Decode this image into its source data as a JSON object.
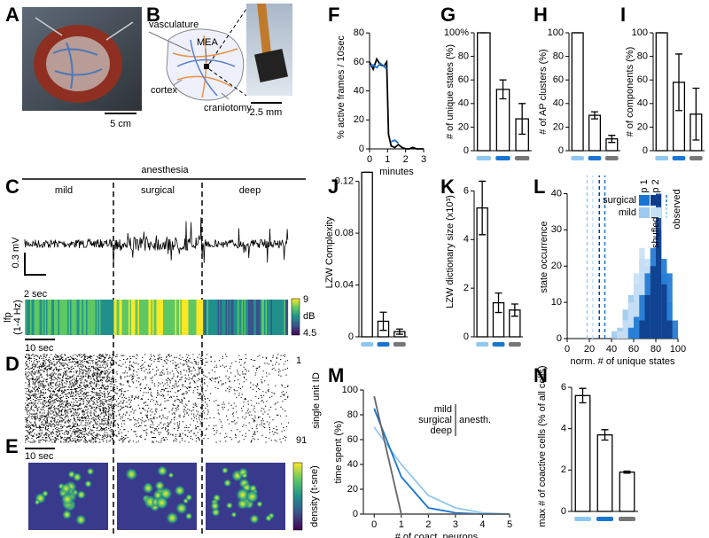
{
  "panel_letters": [
    "A",
    "B",
    "C",
    "D",
    "E",
    "F",
    "G",
    "H",
    "I",
    "J",
    "K",
    "L",
    "M",
    "N"
  ],
  "panel_a": {
    "scale_bar": "5 cm"
  },
  "panel_b": {
    "labels": [
      "vasculature",
      "MEA",
      "cortex",
      "craniotomy"
    ],
    "scale_bar": "2.5 mm"
  },
  "panel_c": {
    "title": "anesthesia",
    "conditions": [
      "mild",
      "surgical",
      "deep"
    ],
    "condition_colors": [
      "#8ec8f0",
      "#1a75d2",
      "#777777"
    ],
    "voltage_scale": "0.3 mV",
    "time_scale": "2 sec",
    "lfp_label": "lfp",
    "lfp_band": "(1-4 Hz)",
    "colorbar_max": 9,
    "colorbar_unit": "dB",
    "colorbar_min": 4.5,
    "lfp_time_scale": "10 sec"
  },
  "panel_d": {
    "first_unit": 1,
    "last_unit": 91,
    "axis_label": "single unit ID",
    "time_scale": "10 sec"
  },
  "panel_e": {
    "colorbar_label": "density (t-sne)"
  },
  "chart_data": [
    {
      "type": "line",
      "ylabel": "% active frames / 10sec",
      "xlabel": "minutes",
      "x": [
        0,
        0.2,
        0.4,
        0.6,
        0.8,
        0.95,
        1.05,
        1.2,
        1.4,
        1.6,
        1.8,
        2.0,
        2.2,
        2.4,
        2.6,
        2.8,
        3.0
      ],
      "series": [
        {
          "color": "#000000",
          "values": [
            60,
            55,
            62,
            58,
            57,
            60,
            10,
            2,
            1,
            3,
            1,
            0,
            0,
            1,
            0,
            0,
            0
          ]
        },
        {
          "color": "#1a75d2",
          "values": [
            57,
            58,
            56,
            59,
            57,
            55,
            null,
            5,
            6,
            4,
            null,
            null,
            null,
            null,
            null,
            null,
            null
          ]
        }
      ],
      "xlim": [
        0,
        3
      ],
      "ylim": [
        0,
        85
      ],
      "xticks": [
        0,
        1,
        2,
        3
      ],
      "yticks": [
        0,
        20,
        40,
        60,
        80
      ]
    },
    {
      "type": "bar",
      "ylabel": "# of unique states (%)",
      "categories": [
        null,
        null,
        null
      ],
      "colors": [
        "#8ec8f0",
        "#1a75d2",
        "#777777"
      ],
      "values": [
        100,
        52,
        27
      ],
      "errors": [
        0,
        8,
        13
      ],
      "ylim": [
        0,
        100
      ],
      "yticks": [
        0,
        20,
        40,
        60,
        80,
        {
          "value": 100,
          "label": "100%"
        }
      ]
    },
    {
      "type": "bar",
      "ylabel": "# of AP clusters (%)",
      "categories": [
        null,
        null,
        null
      ],
      "colors": [
        "#8ec8f0",
        "#1a75d2",
        "#777777"
      ],
      "values": [
        100,
        30,
        10
      ],
      "errors": [
        0,
        3,
        3
      ],
      "ylim": [
        0,
        100
      ],
      "yticks": [
        0,
        20,
        40,
        60,
        80,
        100
      ]
    },
    {
      "type": "bar",
      "ylabel": "# of components (%)",
      "categories": [
        null,
        null,
        null
      ],
      "colors": [
        "#8ec8f0",
        "#1a75d2",
        "#777777"
      ],
      "values": [
        100,
        58,
        31
      ],
      "errors": [
        0,
        24,
        22
      ],
      "ylim": [
        0,
        100
      ],
      "yticks": [
        0,
        20,
        40,
        60,
        80,
        100
      ]
    },
    {
      "type": "bar",
      "ylabel": "LZW Complexity",
      "categories": [
        null,
        null,
        null
      ],
      "colors": [
        "#8ec8f0",
        "#1a75d2",
        "#777777"
      ],
      "values": [
        0.127,
        0.012,
        0.004
      ],
      "errors": [
        0,
        0.007,
        0.002
      ],
      "ylim": [
        0,
        0.13
      ],
      "yticks": [
        0,
        0.04,
        0.08,
        0.12
      ]
    },
    {
      "type": "bar",
      "ylabel": "LZW dictionary size (x10³)",
      "categories": [
        null,
        null,
        null
      ],
      "colors": [
        "#8ec8f0",
        "#1a75d2",
        "#777777"
      ],
      "values": [
        5.3,
        1.4,
        1.1
      ],
      "errors": [
        1.1,
        0.4,
        0.25
      ],
      "ylim": [
        0,
        7
      ],
      "yticks": [
        0,
        2,
        4,
        6
      ]
    },
    {
      "type": "histogram",
      "ylabel": "state occurrence",
      "xlabel": "norm. # of unique states",
      "bins": [
        0,
        5,
        10,
        15,
        20,
        25,
        30,
        35,
        40,
        45,
        50,
        55,
        60,
        65,
        70,
        75,
        80,
        85,
        90,
        95,
        100
      ],
      "legend_columns": [
        "p 1",
        "p 2"
      ],
      "shuffled_label": "shufled",
      "observed_label": "observed",
      "groups": [
        {
          "name": "surgical",
          "color": "#1a75d2",
          "shuffled": [
            {
              "color": "#1a75d2",
              "values": [
                0,
                0,
                0,
                0,
                0,
                0,
                0,
                0,
                0,
                0,
                0,
                3,
                6,
                12,
                18,
                25,
                30,
                22,
                18,
                5
              ]
            },
            {
              "color": "#0d3d8c",
              "values": [
                0,
                0,
                0,
                0,
                0,
                0,
                0,
                0,
                0,
                0,
                0,
                0,
                0,
                5,
                12,
                20,
                40,
                15,
                5,
                0
              ]
            }
          ],
          "observed": [
            34,
            29
          ]
        },
        {
          "name": "mild",
          "color": "#8ec8f0",
          "shuffled": [
            {
              "color": "#9cc9ee",
              "values": [
                0,
                0,
                0,
                0,
                0,
                0,
                0,
                0,
                2,
                3,
                8,
                12,
                15,
                22,
                20,
                18,
                22,
                18,
                10,
                0
              ]
            },
            {
              "color": "#c6e0f5",
              "values": [
                0,
                0,
                0,
                0,
                0,
                0,
                0,
                0,
                0,
                2,
                5,
                10,
                18,
                25,
                22,
                20,
                28,
                15,
                5,
                0
              ]
            }
          ],
          "observed": [
            18,
            23
          ]
        }
      ],
      "xlim": [
        0,
        100
      ],
      "ylim": [
        0,
        45
      ],
      "xticks": [
        0,
        20,
        40,
        60,
        80,
        100
      ],
      "yticks": [
        0,
        10,
        20,
        30,
        40
      ]
    },
    {
      "type": "line",
      "ylabel": "time spent (%)",
      "xlabel": "# of coact. neurons",
      "legend_label": "anesth.",
      "x": [
        0,
        1,
        2,
        3,
        4,
        5
      ],
      "series": [
        {
          "name": "mild",
          "color": "#8ec8f0",
          "values": [
            70,
            40,
            15,
            5,
            1,
            0
          ]
        },
        {
          "name": "surgical",
          "color": "#1a75d2",
          "values": [
            85,
            30,
            5,
            1,
            0,
            0
          ]
        },
        {
          "name": "deep",
          "color": "#666666",
          "values": [
            95,
            0,
            0,
            0,
            0,
            0
          ]
        }
      ],
      "xlim": [
        -0.4,
        5
      ],
      "ylim": [
        0,
        100
      ],
      "xticks": [
        0,
        1,
        2,
        3,
        4,
        5
      ],
      "yticks": [
        0,
        20,
        40,
        60,
        80,
        100
      ]
    },
    {
      "type": "bar",
      "ylabel": "max # of coactive cells (% of all cells)",
      "categories": [
        null,
        null,
        null
      ],
      "colors": [
        "#8ec8f0",
        "#1a75d2",
        "#777777"
      ],
      "values": [
        5.6,
        3.7,
        1.9
      ],
      "errors": [
        0.35,
        0.25,
        0.05
      ],
      "ylim": [
        0,
        6.3
      ],
      "yticks": [
        0,
        2,
        4,
        6
      ]
    }
  ]
}
